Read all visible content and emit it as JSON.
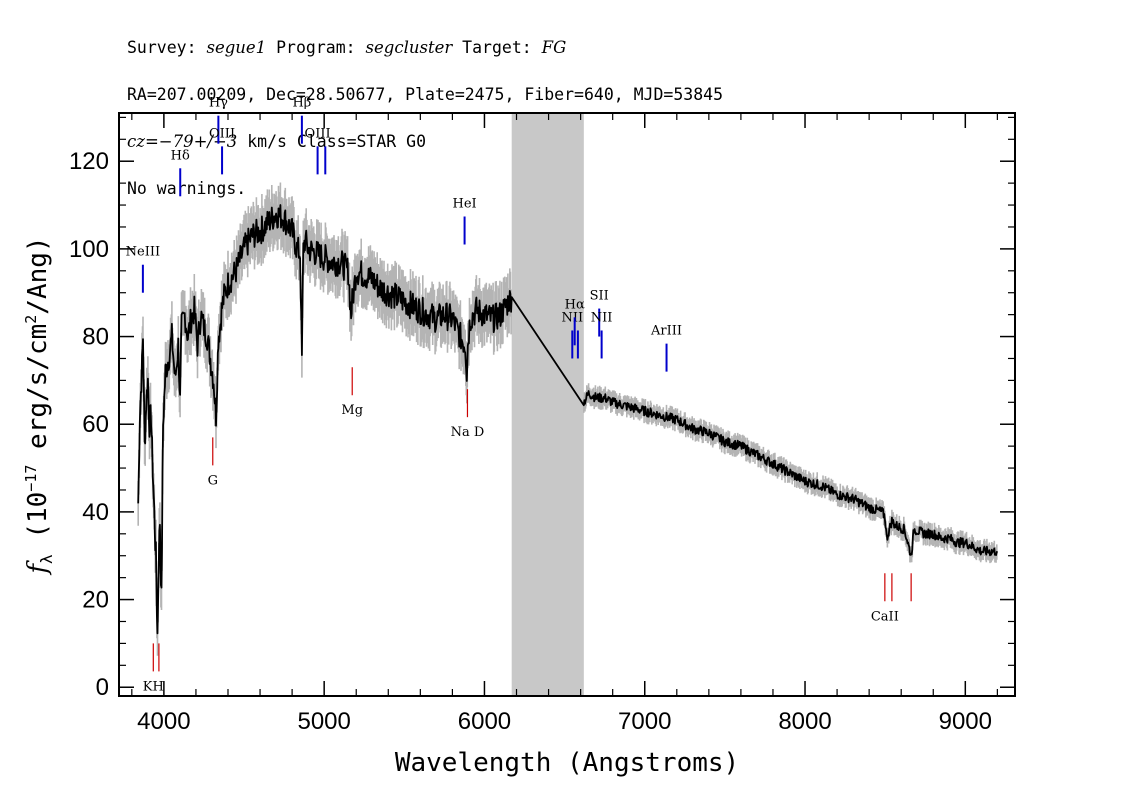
{
  "header": {
    "survey_label": "Survey:",
    "survey": "segue1",
    "program_label": "Program:",
    "program": "segcluster",
    "target_label": "Target:",
    "target": "FG",
    "line2": "RA=207.00209, Dec=28.50677, Plate=2475, Fiber=640, MJD=53845",
    "cz_label": "cz",
    "cz_value": "=−79+/−3",
    "cz_rest": " km/s Class=STAR G0",
    "line4": "No warnings."
  },
  "chart_data": {
    "type": "line",
    "xlabel": "Wavelength (Angstroms)",
    "ylabel_prefix": "f",
    "ylabel_sub": "λ",
    "ylabel_main": " (10",
    "ylabel_exp": "−17",
    "ylabel_mid": " erg/s/cm",
    "ylabel_exp2": "2",
    "ylabel_end": "/Ang)",
    "xlim": [
      3720,
      9310
    ],
    "ylim": [
      -2,
      131
    ],
    "xticks": [
      4000,
      5000,
      6000,
      7000,
      8000,
      9000
    ],
    "yticks": [
      0,
      20,
      40,
      60,
      80,
      100,
      120
    ],
    "masked_region": [
      6170,
      6620
    ],
    "series": [
      {
        "color": "#000000",
        "x": [
          3840,
          3850,
          3860,
          3870,
          3880,
          3890,
          3900,
          3910,
          3920,
          3930,
          3940,
          3950,
          3960,
          3968,
          3975,
          3985,
          3995,
          4010,
          4030,
          4050,
          4070,
          4090,
          4101,
          4110,
          4130,
          4150,
          4170,
          4190,
          4210,
          4230,
          4250,
          4270,
          4290,
          4310,
          4325,
          4340,
          4350,
          4360,
          4380,
          4400,
          4450,
          4500,
          4550,
          4600,
          4650,
          4700,
          4750,
          4800,
          4830,
          4850,
          4861,
          4870,
          4880,
          4900,
          4950,
          5000,
          5050,
          5100,
          5150,
          5168,
          5175,
          5183,
          5200,
          5250,
          5300,
          5350,
          5400,
          5450,
          5500,
          5550,
          5600,
          5650,
          5700,
          5750,
          5800,
          5850,
          5880,
          5890,
          5896,
          5910,
          5950,
          6000,
          6050,
          6100,
          6150,
          6170,
          6620,
          6650,
          6700,
          6750,
          6800,
          6900,
          7000,
          7100,
          7200,
          7300,
          7400,
          7500,
          7600,
          7700,
          7800,
          7900,
          8000,
          8100,
          8200,
          8300,
          8400,
          8480,
          8498,
          8510,
          8542,
          8560,
          8620,
          8662,
          8680,
          8750,
          8800,
          8850,
          8900,
          8950,
          9000,
          9050,
          9100,
          9150,
          9200
        ],
        "y": [
          42,
          62,
          70,
          80,
          55,
          65,
          70,
          60,
          62,
          50,
          40,
          30,
          12,
          30,
          38,
          20,
          60,
          72,
          75,
          80,
          70,
          78,
          65,
          82,
          85,
          80,
          84,
          86,
          78,
          85,
          82,
          80,
          75,
          70,
          62,
          80,
          82,
          86,
          90,
          92,
          95,
          100,
          103,
          104,
          106,
          108,
          107,
          104,
          100,
          99,
          75,
          100,
          102,
          100,
          99,
          98,
          97,
          97,
          95,
          85,
          88,
          90,
          95,
          94,
          93,
          91,
          90,
          89,
          88,
          87,
          86,
          85,
          84,
          85,
          84,
          80,
          78,
          72,
          78,
          84,
          86,
          85,
          84,
          85,
          88,
          89,
          65,
          67,
          66,
          66,
          65,
          64,
          63,
          62,
          61,
          59,
          58,
          56,
          55,
          53,
          51,
          49,
          47,
          46,
          44,
          43,
          41,
          40,
          39,
          34,
          38,
          37,
          36,
          30,
          36,
          35,
          35,
          34,
          34,
          33,
          33,
          32,
          31,
          31,
          31
        ]
      }
    ],
    "lines": [
      {
        "name": "NeIII",
        "x": 3869,
        "label_pos": "above",
        "y": 90,
        "color": "#0000cc"
      },
      {
        "name": "Hδ",
        "x": 4102,
        "label_pos": "above",
        "y": 112,
        "color": "#0000cc"
      },
      {
        "name": "Hγ",
        "x": 4340,
        "label_pos": "above",
        "y": 124,
        "color": "#0000cc"
      },
      {
        "name": "OIII",
        "x": 4363,
        "label_pos": "above",
        "y": 117,
        "color": "#0000cc"
      },
      {
        "name": "Hβ",
        "x": 4861,
        "label_pos": "above",
        "y": 124,
        "color": "#0000cc"
      },
      {
        "name": "OIII",
        "x": 4959,
        "label_pos": "above",
        "y": 117,
        "color": "#0000cc"
      },
      {
        "name": "",
        "x": 5007,
        "label_pos": "above",
        "y": 117,
        "color": "#0000cc"
      },
      {
        "name": "HeI",
        "x": 5876,
        "label_pos": "above",
        "y": 101,
        "color": "#0000cc"
      },
      {
        "name": "NII",
        "x": 6548,
        "label_pos": "above",
        "y": 75,
        "color": "#0000cc"
      },
      {
        "name": "Hα",
        "x": 6563,
        "label_pos": "above",
        "y": 78,
        "color": "#0000cc"
      },
      {
        "name": "",
        "x": 6583,
        "label_pos": "above",
        "y": 75,
        "color": "#0000cc"
      },
      {
        "name": "SII",
        "x": 6716,
        "label_pos": "above",
        "y": 80,
        "color": "#0000cc"
      },
      {
        "name": "NII",
        "x": 6731,
        "label_pos": "above",
        "y": 75,
        "color": "#0000cc"
      },
      {
        "name": "ArIII",
        "x": 7136,
        "label_pos": "above",
        "y": 72,
        "color": "#0000cc"
      },
      {
        "name": "KH",
        "x": 3934,
        "label_pos": "below",
        "y": 10,
        "color": "#cc0000"
      },
      {
        "name": "",
        "x": 3969,
        "label_pos": "below",
        "y": 10,
        "color": "#cc0000"
      },
      {
        "name": "G",
        "x": 4305,
        "label_pos": "below",
        "y": 57,
        "color": "#cc0000"
      },
      {
        "name": "Mg",
        "x": 5175,
        "label_pos": "below",
        "y": 73,
        "color": "#cc0000"
      },
      {
        "name": "Na D",
        "x": 5894,
        "label_pos": "below",
        "y": 68,
        "color": "#cc0000"
      },
      {
        "name": "CaII",
        "x": 8498,
        "label_pos": "below",
        "y": 26,
        "color": "#cc0000"
      },
      {
        "name": "",
        "x": 8542,
        "label_pos": "below",
        "y": 26,
        "color": "#cc0000"
      },
      {
        "name": "",
        "x": 8662,
        "label_pos": "below",
        "y": 26,
        "color": "#cc0000"
      }
    ]
  }
}
